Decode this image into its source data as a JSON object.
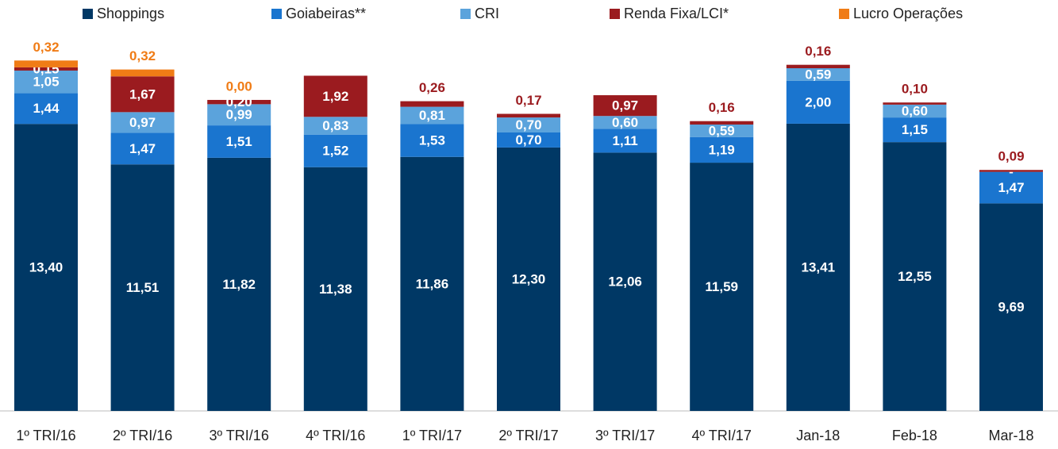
{
  "chart_data": {
    "type": "bar",
    "stacked": true,
    "categories": [
      "1º TRI/16",
      "2º TRI/16",
      "3º TRI/16",
      "4º TRI/16",
      "1º TRI/17",
      "2º TRI/17",
      "3º TRI/17",
      "4º TRI/17",
      "Jan-18",
      "Feb-18",
      "Mar-18"
    ],
    "series": [
      {
        "name": "Shoppings",
        "color": "#003865",
        "values": [
          13.4,
          11.51,
          11.82,
          11.38,
          11.86,
          12.3,
          12.06,
          11.59,
          13.41,
          12.55,
          9.69
        ],
        "value_labels": [
          "13,40",
          "11,51",
          "11,82",
          "11,38",
          "11,86",
          "12,30",
          "12,06",
          "11,59",
          "13,41",
          "12,55",
          "9,69"
        ]
      },
      {
        "name": "Goiabeiras**",
        "color": "#1a75cf",
        "values": [
          1.44,
          1.47,
          1.51,
          1.52,
          1.53,
          0.7,
          1.11,
          1.19,
          2.0,
          1.15,
          1.47
        ],
        "value_labels": [
          "1,44",
          "1,47",
          "1,51",
          "1,52",
          "1,53",
          "0,70",
          "1,11",
          "1,19",
          "2,00",
          "1,15",
          "1,47"
        ]
      },
      {
        "name": "CRI",
        "color": "#5ba3dc",
        "values": [
          1.05,
          0.97,
          0.99,
          0.83,
          0.81,
          0.7,
          0.6,
          0.59,
          0.59,
          0.6,
          0
        ],
        "value_labels": [
          "1,05",
          "0,97",
          "0,99",
          "0,83",
          "0,81",
          "0,70",
          "0,60",
          "0,59",
          "0,59",
          "0,60",
          "-"
        ]
      },
      {
        "name": "Renda Fixa/LCI*",
        "color": "#9b1b1f",
        "values": [
          0.15,
          1.67,
          0.2,
          1.92,
          0.26,
          0.17,
          0.97,
          0.16,
          0.16,
          0.1,
          0.09
        ],
        "value_labels": [
          "0,15",
          "1,67",
          "0,20",
          "1,92",
          "0,26",
          "0,17",
          "0,97",
          "0,16",
          "0,16",
          "0,10",
          "0,09"
        ]
      },
      {
        "name": "Lucro Operações",
        "color": "#f07c16",
        "values": [
          0.32,
          0.32,
          0.0,
          null,
          null,
          null,
          null,
          null,
          null,
          null,
          null
        ],
        "value_labels": [
          "0,32",
          "0,32",
          "0,00",
          null,
          null,
          null,
          null,
          null,
          null,
          null,
          null
        ]
      }
    ]
  }
}
